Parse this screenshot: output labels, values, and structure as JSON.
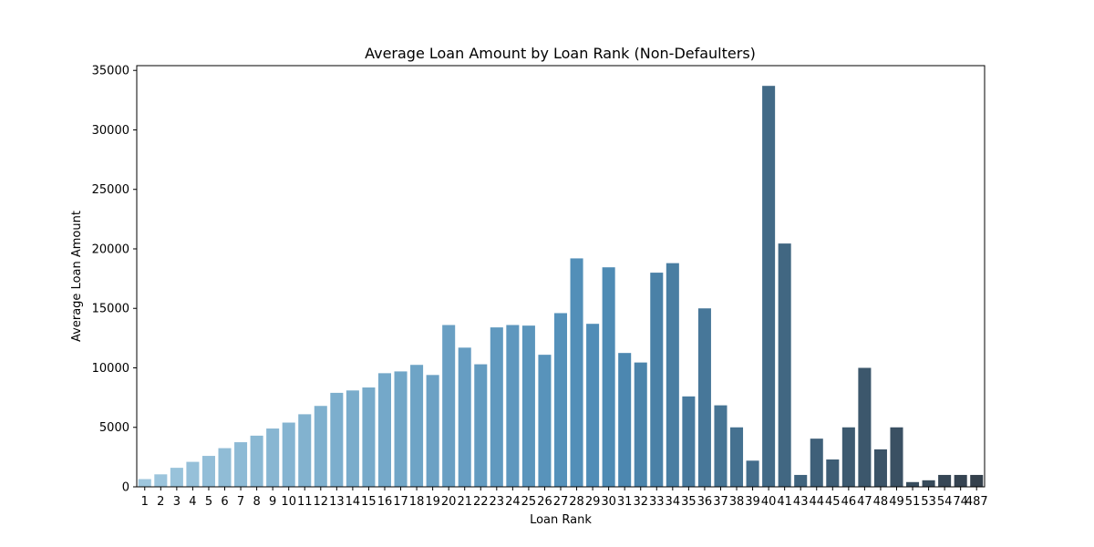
{
  "chart_data": {
    "type": "bar",
    "title": "Average Loan Amount by Loan Rank (Non-Defaulters)",
    "xlabel": "Loan Rank",
    "ylabel": "Average Loan Amount",
    "ylim": [
      0,
      35400
    ],
    "yticks": [
      0,
      5000,
      10000,
      15000,
      20000,
      25000,
      30000,
      35000
    ],
    "grid": false,
    "legend": "none",
    "palette": "Blues_d",
    "categories": [
      "1",
      "2",
      "3",
      "4",
      "5",
      "6",
      "7",
      "8",
      "9",
      "10",
      "11",
      "12",
      "13",
      "14",
      "15",
      "16",
      "17",
      "18",
      "19",
      "20",
      "21",
      "22",
      "23",
      "24",
      "25",
      "26",
      "27",
      "28",
      "29",
      "30",
      "31",
      "32",
      "33",
      "34",
      "35",
      "36",
      "37",
      "38",
      "39",
      "40",
      "41",
      "43",
      "44",
      "45",
      "46",
      "47",
      "48",
      "49",
      "51",
      "53",
      "54",
      "74",
      "487"
    ],
    "values": [
      650,
      1050,
      1600,
      2100,
      2600,
      3250,
      3750,
      4300,
      4900,
      5400,
      6100,
      6800,
      7900,
      8100,
      8350,
      9550,
      9700,
      10250,
      9400,
      13600,
      11700,
      10300,
      13400,
      13600,
      13550,
      11100,
      14600,
      19200,
      13700,
      18450,
      11250,
      10450,
      18000,
      18800,
      7600,
      15000,
      6850,
      5000,
      2200,
      33700,
      20450,
      1000,
      4050,
      2300,
      5000,
      10000,
      3150,
      5000,
      400,
      550,
      1000,
      1000,
      1000
    ]
  }
}
